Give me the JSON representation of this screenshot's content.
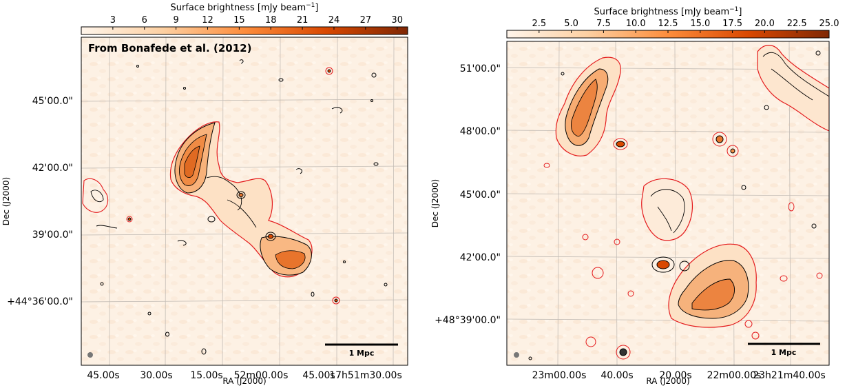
{
  "chart_data": [
    {
      "type": "heatmap",
      "colorbar": {
        "label": "Surface brightness [mJy beam$^{-1}$]",
        "label_display": "Surface brightness [mJy beam",
        "label_exp": "−1",
        "label_close": "]",
        "ticks": [
          "3",
          "6",
          "9",
          "12",
          "15",
          "18",
          "21",
          "24",
          "27",
          "30"
        ],
        "tick_values": [
          3,
          6,
          9,
          12,
          15,
          18,
          21,
          24,
          27,
          30
        ],
        "range": [
          0,
          31
        ],
        "colormap": [
          "#fff5eb",
          "#fdd0a2",
          "#fd8d3c",
          "#d94801",
          "#7f2704"
        ]
      },
      "annotation": "From Bonafede et al. (2012)",
      "xlabel": "RA (J2000)",
      "ylabel": "Dec (J2000)",
      "x_ticks": [
        "45.00s",
        "30.00s",
        "15.00s",
        "52m00.00s",
        "45.00s",
        "17h51m30.00s"
      ],
      "y_ticks": [
        "45'00.0\"",
        "42'00.0\"",
        "39'00.0\"",
        "+44°36'00.0\""
      ],
      "scalebar": "1 Mpc",
      "contour_colors": [
        "#000000",
        "#e41a1c"
      ]
    },
    {
      "type": "heatmap",
      "colorbar": {
        "label": "Surface brightness [mJy beam$^{-1}$]",
        "label_display": "Surface brightness [mJy beam",
        "label_exp": "−1",
        "label_close": "]",
        "ticks": [
          "2.5",
          "5.0",
          "7.5",
          "10.0",
          "12.5",
          "15.0",
          "17.5",
          "20.0",
          "22.5",
          "25.0"
        ],
        "tick_values": [
          2.5,
          5.0,
          7.5,
          10.0,
          12.5,
          15.0,
          17.5,
          20.0,
          22.5,
          25.0
        ],
        "range": [
          0,
          25.0
        ],
        "colormap": [
          "#fff5eb",
          "#fdd0a2",
          "#fd8d3c",
          "#d94801",
          "#7f2704"
        ]
      },
      "xlabel": "RA (J2000)",
      "ylabel": "Dec (J2000)",
      "x_ticks": [
        "23m00.00s",
        "40.00s",
        "20.00s",
        "22m00.00s",
        "23h21m40.00s"
      ],
      "y_ticks": [
        "51'00.0\"",
        "48'00.0\"",
        "45'00.0\"",
        "42'00.0\"",
        "+48°39'00.0\""
      ],
      "scalebar": "1 Mpc",
      "contour_colors": [
        "#000000",
        "#e41a1c"
      ]
    }
  ]
}
